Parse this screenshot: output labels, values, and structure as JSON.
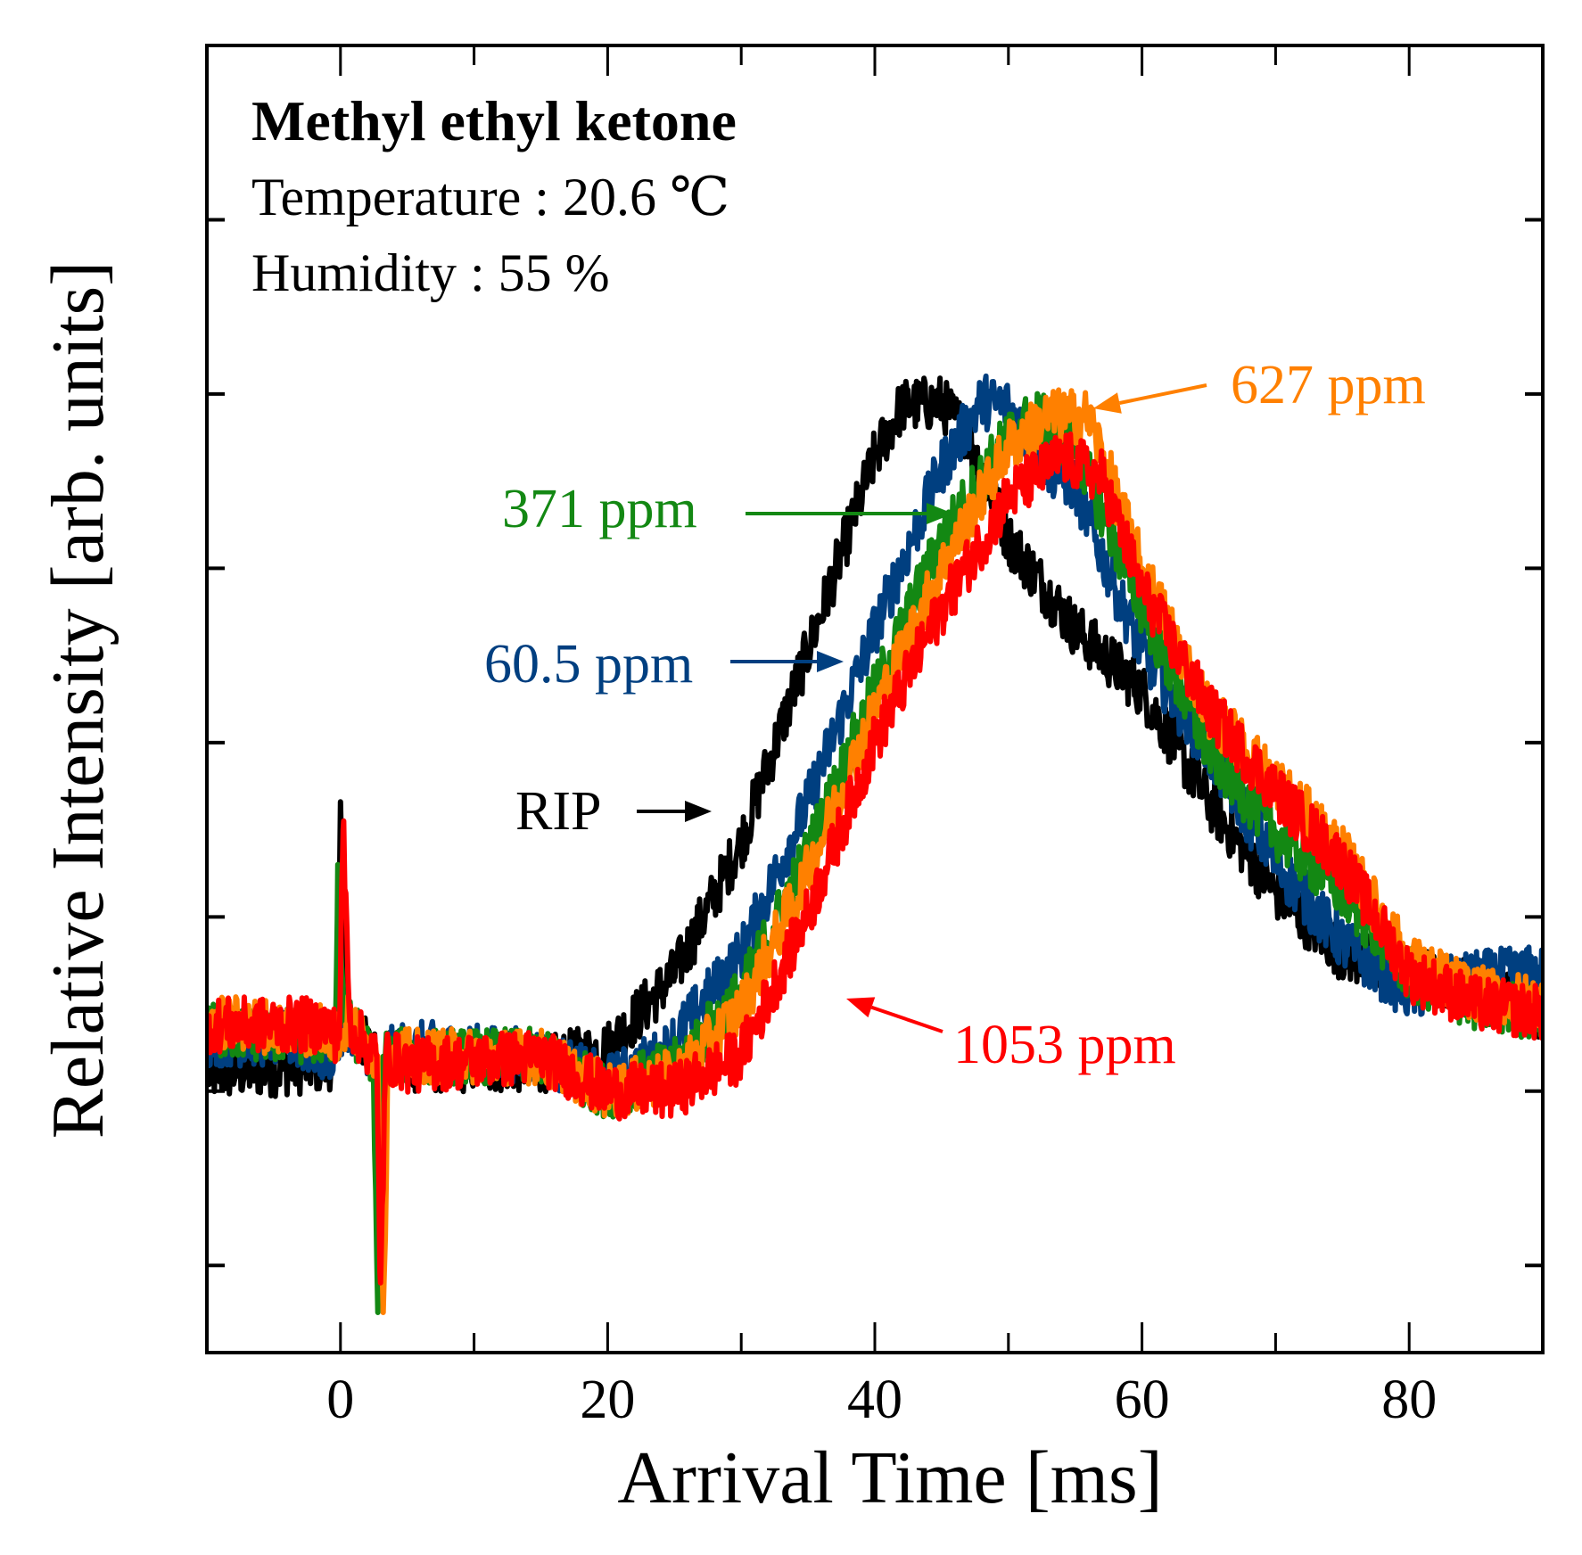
{
  "chart_data": {
    "type": "line",
    "title": "Methyl ethyl ketone",
    "annotations_text": {
      "temperature": "Temperature : 20.6 ℃",
      "humidity": "Humidity : 55 %"
    },
    "xlabel": "Arrival Time [ms]",
    "ylabel": "Relative Intensity [arb. units]",
    "xlim": [
      -10,
      90
    ],
    "ylim": [
      -0.5,
      7.0
    ],
    "xticks": [
      0,
      20,
      40,
      60,
      80
    ],
    "xtick_labels": [
      "0",
      "20",
      "40",
      "60",
      "80"
    ],
    "xminor_ticks": [
      10,
      30,
      50,
      70
    ],
    "yticks": [
      0,
      1,
      2,
      3,
      4,
      5,
      6
    ],
    "grid": false,
    "series": [
      {
        "name": "RIP",
        "label": "RIP",
        "color": "#000000",
        "points": [
          [
            -10,
            1.1
          ],
          [
            -1,
            1.15
          ],
          [
            -0.3,
            1.2
          ],
          [
            0,
            2.66
          ],
          [
            0.5,
            1.4
          ],
          [
            1.5,
            1.3
          ],
          [
            2.6,
            1.2
          ],
          [
            3,
            0.2
          ],
          [
            3.4,
            1.2
          ],
          [
            5,
            1.15
          ],
          [
            15,
            1.15
          ],
          [
            20,
            1.25
          ],
          [
            25,
            1.67
          ],
          [
            30,
            2.43
          ],
          [
            35,
            3.53
          ],
          [
            40,
            4.64
          ],
          [
            42,
            4.93
          ],
          [
            45,
            4.95
          ],
          [
            47,
            4.76
          ],
          [
            50,
            4.17
          ],
          [
            55,
            3.65
          ],
          [
            60,
            3.3
          ],
          [
            65,
            2.66
          ],
          [
            70,
            2.14
          ],
          [
            75,
            1.79
          ],
          [
            80,
            1.67
          ],
          [
            85,
            1.6
          ],
          [
            90,
            1.45
          ]
        ]
      },
      {
        "name": "60.5 ppm",
        "label": "60.5 ppm",
        "color": "#003f80",
        "points": [
          [
            -10,
            1.3
          ],
          [
            -4,
            1.3
          ],
          [
            -1,
            1.2
          ],
          [
            0,
            1.3
          ],
          [
            0.5,
            1.4
          ],
          [
            1.5,
            1.3
          ],
          [
            2.6,
            1.2
          ],
          [
            3,
            0.0
          ],
          [
            3.4,
            1.2
          ],
          [
            5,
            1.25
          ],
          [
            15,
            1.2
          ],
          [
            20,
            1.05
          ],
          [
            24,
            1.2
          ],
          [
            30,
            1.79
          ],
          [
            35,
            2.66
          ],
          [
            40,
            3.65
          ],
          [
            45,
            4.58
          ],
          [
            48,
            4.96
          ],
          [
            50,
            4.93
          ],
          [
            53,
            4.58
          ],
          [
            55,
            4.47
          ],
          [
            58,
            3.88
          ],
          [
            60,
            3.53
          ],
          [
            65,
            2.95
          ],
          [
            70,
            2.31
          ],
          [
            75,
            1.85
          ],
          [
            80,
            1.56
          ],
          [
            85,
            1.65
          ],
          [
            90,
            1.68
          ]
        ]
      },
      {
        "name": "371 ppm",
        "label": "371 ppm",
        "color": "#138813",
        "points": [
          [
            -10,
            1.35
          ],
          [
            -1,
            1.3
          ],
          [
            -0.4,
            1.3
          ],
          [
            -0.2,
            2.3
          ],
          [
            0.3,
            1.4
          ],
          [
            1.5,
            1.3
          ],
          [
            2.4,
            1.2
          ],
          [
            2.8,
            -0.27
          ],
          [
            3.2,
            1.2
          ],
          [
            5,
            1.2
          ],
          [
            15,
            1.2
          ],
          [
            20,
            1.0
          ],
          [
            25,
            1.14
          ],
          [
            30,
            1.56
          ],
          [
            35,
            2.37
          ],
          [
            40,
            3.3
          ],
          [
            45,
            4.17
          ],
          [
            50,
            4.76
          ],
          [
            52,
            4.87
          ],
          [
            55,
            4.7
          ],
          [
            60,
            3.77
          ],
          [
            65,
            2.95
          ],
          [
            70,
            2.49
          ],
          [
            75,
            2.14
          ],
          [
            80,
            1.67
          ],
          [
            85,
            1.5
          ],
          [
            90,
            1.45
          ]
        ]
      },
      {
        "name": "627 ppm",
        "label": "627 ppm",
        "color": "#ff8000",
        "points": [
          [
            -10,
            1.4
          ],
          [
            -1,
            1.35
          ],
          [
            0,
            1.3
          ],
          [
            0.5,
            1.4
          ],
          [
            1.5,
            1.3
          ],
          [
            2.8,
            1.2
          ],
          [
            3.2,
            -0.27
          ],
          [
            3.6,
            1.2
          ],
          [
            5,
            1.2
          ],
          [
            15,
            1.2
          ],
          [
            20,
            1.0
          ],
          [
            25,
            1.08
          ],
          [
            30,
            1.47
          ],
          [
            35,
            2.26
          ],
          [
            40,
            3.19
          ],
          [
            45,
            4.0
          ],
          [
            50,
            4.7
          ],
          [
            53,
            4.87
          ],
          [
            56,
            4.87
          ],
          [
            60,
            4.0
          ],
          [
            65,
            3.19
          ],
          [
            70,
            2.78
          ],
          [
            75,
            2.37
          ],
          [
            80,
            1.74
          ],
          [
            85,
            1.56
          ],
          [
            90,
            1.5
          ]
        ]
      },
      {
        "name": "1053 ppm",
        "label": "1053 ppm",
        "color": "#ff0000",
        "points": [
          [
            -10,
            1.38
          ],
          [
            -1,
            1.38
          ],
          [
            -0.1,
            1.3
          ],
          [
            0.2,
            2.5
          ],
          [
            0.7,
            1.4
          ],
          [
            1.5,
            1.3
          ],
          [
            2.7,
            1.2
          ],
          [
            3,
            -0.1
          ],
          [
            3.4,
            1.2
          ],
          [
            5,
            1.15
          ],
          [
            15,
            1.2
          ],
          [
            20,
            1.0
          ],
          [
            25,
            1.0
          ],
          [
            30,
            1.21
          ],
          [
            35,
            2.02
          ],
          [
            40,
            3.01
          ],
          [
            45,
            3.77
          ],
          [
            50,
            4.41
          ],
          [
            54,
            4.64
          ],
          [
            57,
            4.52
          ],
          [
            60,
            3.88
          ],
          [
            65,
            3.19
          ],
          [
            70,
            2.72
          ],
          [
            75,
            2.31
          ],
          [
            80,
            1.67
          ],
          [
            85,
            1.5
          ],
          [
            90,
            1.45
          ]
        ]
      }
    ]
  }
}
